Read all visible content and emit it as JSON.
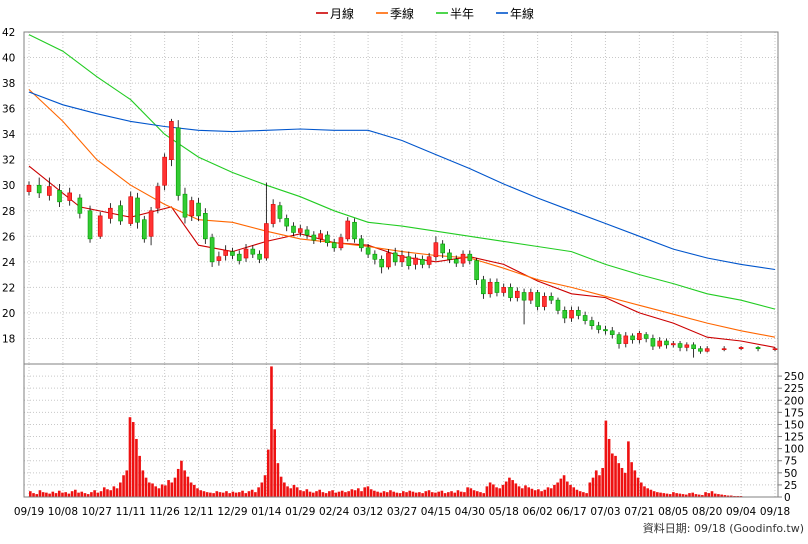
{
  "chart_data": [
    {
      "type": "line",
      "panel": "price",
      "legend": [
        {
          "name": "月線",
          "color": "#cc0000"
        },
        {
          "name": "季線",
          "color": "#ff6600"
        },
        {
          "name": "半年",
          "color": "#22cc22"
        },
        {
          "name": "年線",
          "color": "#0055cc"
        }
      ],
      "ylim": [
        16,
        42
      ],
      "yticks": [
        18,
        20,
        22,
        24,
        26,
        28,
        30,
        32,
        34,
        36,
        38,
        40,
        42
      ],
      "grid": true,
      "legend_position": "top-center",
      "x_ticks": [
        "09/19",
        "10/08",
        "10/27",
        "11/11",
        "11/26",
        "12/11",
        "12/29",
        "01/14",
        "01/29",
        "02/24",
        "03/12",
        "03/27",
        "04/15",
        "04/30",
        "05/18",
        "06/02",
        "06/17",
        "07/03",
        "07/21",
        "08/05",
        "08/20",
        "09/04",
        "09/18"
      ],
      "series": [
        {
          "name": "月線",
          "x": [
            0,
            1.5,
            3,
            4.2,
            5,
            6,
            7,
            8,
            9,
            10,
            11,
            12,
            13,
            14,
            15,
            16,
            17,
            18,
            19,
            20,
            21,
            22
          ],
          "y": [
            31.5,
            28.3,
            27.5,
            28.3,
            25.3,
            24.8,
            25.6,
            26.2,
            25.5,
            25.3,
            24.4,
            24.0,
            24.4,
            23.8,
            22.5,
            21.5,
            21.2,
            20.0,
            19.2,
            18.1,
            17.8,
            17.3
          ]
        },
        {
          "name": "季線",
          "x": [
            0,
            1,
            2,
            3,
            4,
            5,
            6,
            7,
            8,
            9,
            10,
            11,
            12,
            13,
            14,
            15,
            16,
            17,
            18,
            19,
            20,
            21,
            22
          ],
          "y": [
            37.5,
            35.0,
            32.0,
            30.0,
            28.5,
            27.3,
            27.1,
            26.4,
            25.8,
            25.5,
            25.2,
            24.8,
            24.5,
            24.3,
            23.5,
            22.6,
            22.0,
            21.3,
            20.6,
            19.9,
            19.2,
            18.6,
            18.1
          ]
        },
        {
          "name": "半年",
          "x": [
            0,
            1,
            2,
            3,
            4,
            5,
            6,
            7,
            8,
            9,
            10,
            11,
            12,
            13,
            14,
            15,
            16,
            17,
            18,
            19,
            20,
            21,
            22
          ],
          "y": [
            41.8,
            40.5,
            38.5,
            36.7,
            34.0,
            32.2,
            31.0,
            30.0,
            29.1,
            28.0,
            27.1,
            26.8,
            26.4,
            26.0,
            25.6,
            25.2,
            24.8,
            23.8,
            23.0,
            22.3,
            21.5,
            21.0,
            20.3
          ]
        },
        {
          "name": "年線",
          "x": [
            0,
            1,
            2,
            3,
            4,
            5,
            6,
            7,
            8,
            9,
            10,
            11,
            12,
            13,
            14,
            15,
            16,
            17,
            18,
            19,
            20,
            21,
            22
          ],
          "y": [
            37.3,
            36.3,
            35.6,
            35.0,
            34.6,
            34.3,
            34.2,
            34.3,
            34.4,
            34.3,
            34.3,
            33.5,
            32.4,
            31.3,
            30.1,
            29.0,
            28.0,
            27.0,
            26.0,
            25.0,
            24.3,
            23.8,
            23.4
          ]
        }
      ],
      "candles": [
        [
          0.0,
          29.5,
          30.0,
          30.3,
          29.2
        ],
        [
          0.3,
          30.0,
          29.4,
          30.6,
          29.0
        ],
        [
          0.6,
          29.2,
          29.9,
          30.6,
          28.8
        ],
        [
          0.9,
          29.6,
          28.7,
          30.1,
          28.3
        ],
        [
          1.2,
          28.8,
          29.4,
          29.8,
          28.4
        ],
        [
          1.5,
          29.0,
          27.8,
          29.3,
          27.4
        ],
        [
          1.8,
          28.0,
          25.8,
          28.4,
          25.5
        ],
        [
          2.1,
          26.0,
          27.6,
          27.9,
          25.8
        ],
        [
          2.4,
          27.4,
          28.2,
          28.6,
          27.0
        ],
        [
          2.7,
          28.4,
          27.2,
          28.8,
          26.9
        ],
        [
          3.0,
          27.0,
          29.1,
          29.5,
          26.8
        ],
        [
          3.2,
          29.0,
          27.1,
          29.4,
          26.6
        ],
        [
          3.4,
          27.3,
          25.8,
          27.6,
          25.5
        ],
        [
          3.6,
          26.0,
          28.0,
          28.3,
          25.3
        ],
        [
          3.8,
          28.2,
          29.9,
          30.2,
          27.8
        ],
        [
          4.0,
          30.0,
          32.2,
          32.5,
          29.6
        ],
        [
          4.2,
          32.0,
          35.0,
          35.2,
          31.5
        ],
        [
          4.4,
          34.5,
          29.2,
          35.1,
          28.8
        ],
        [
          4.6,
          29.3,
          27.5,
          29.8,
          27.0
        ],
        [
          4.8,
          27.6,
          28.8,
          29.1,
          27.2
        ],
        [
          5.0,
          28.6,
          27.6,
          29.0,
          27.2
        ],
        [
          5.2,
          27.8,
          25.8,
          28.2,
          25.4
        ],
        [
          5.4,
          25.9,
          24.0,
          26.2,
          23.6
        ],
        [
          5.6,
          24.1,
          24.4,
          24.8,
          23.7
        ],
        [
          5.8,
          24.5,
          24.9,
          25.3,
          24.1
        ],
        [
          6.0,
          24.8,
          24.5,
          25.1,
          24.2
        ],
        [
          6.2,
          24.6,
          24.1,
          24.9,
          23.8
        ],
        [
          6.4,
          24.3,
          25.0,
          25.4,
          24.0
        ],
        [
          6.6,
          25.0,
          24.6,
          25.3,
          24.3
        ],
        [
          6.8,
          24.6,
          24.2,
          24.9,
          23.9
        ],
        [
          7.0,
          24.3,
          27.0,
          30.2,
          24.1
        ],
        [
          7.2,
          27.0,
          28.5,
          28.9,
          26.7
        ],
        [
          7.4,
          28.4,
          27.4,
          28.7,
          27.1
        ],
        [
          7.6,
          27.4,
          26.8,
          27.7,
          26.4
        ],
        [
          7.8,
          26.8,
          26.3,
          27.1,
          26.0
        ],
        [
          8.0,
          26.3,
          26.6,
          26.9,
          26.0
        ],
        [
          8.2,
          26.5,
          26.1,
          26.8,
          25.8
        ],
        [
          8.4,
          26.1,
          25.7,
          26.4,
          25.4
        ],
        [
          8.6,
          25.8,
          26.2,
          26.5,
          25.5
        ],
        [
          8.8,
          26.1,
          25.5,
          26.4,
          25.2
        ],
        [
          9.0,
          25.5,
          25.1,
          25.8,
          24.8
        ],
        [
          9.2,
          25.1,
          25.9,
          26.2,
          24.9
        ],
        [
          9.4,
          25.8,
          27.2,
          27.5,
          25.6
        ],
        [
          9.6,
          27.1,
          25.8,
          27.4,
          25.5
        ],
        [
          9.8,
          25.8,
          25.1,
          26.1,
          24.8
        ],
        [
          10.0,
          25.1,
          24.6,
          25.4,
          24.3
        ],
        [
          10.2,
          24.6,
          24.2,
          24.9,
          23.8
        ],
        [
          10.4,
          24.2,
          23.6,
          24.5,
          23.1
        ],
        [
          10.6,
          23.6,
          24.7,
          25.0,
          23.4
        ],
        [
          10.8,
          24.7,
          24.0,
          25.1,
          23.7
        ],
        [
          11.0,
          24.0,
          24.5,
          24.9,
          23.6
        ],
        [
          11.2,
          24.4,
          23.7,
          24.8,
          23.4
        ],
        [
          11.4,
          23.8,
          24.3,
          24.6,
          23.4
        ],
        [
          11.6,
          24.2,
          23.8,
          24.5,
          23.5
        ],
        [
          11.8,
          23.8,
          24.4,
          24.7,
          23.5
        ],
        [
          12.0,
          24.4,
          25.5,
          26.0,
          24.1
        ],
        [
          12.2,
          25.4,
          24.7,
          25.7,
          24.3
        ],
        [
          12.4,
          24.7,
          24.2,
          25.0,
          23.9
        ],
        [
          12.6,
          24.2,
          23.9,
          24.5,
          23.6
        ],
        [
          12.8,
          23.9,
          24.6,
          24.9,
          23.6
        ],
        [
          13.0,
          24.6,
          24.1,
          24.9,
          23.8
        ],
        [
          13.2,
          24.1,
          22.6,
          24.3,
          22.2
        ],
        [
          13.4,
          22.6,
          21.5,
          22.9,
          21.1
        ],
        [
          13.6,
          21.5,
          22.4,
          22.7,
          21.2
        ],
        [
          13.8,
          22.4,
          21.6,
          22.7,
          21.3
        ],
        [
          14.0,
          21.6,
          22.0,
          22.3,
          21.3
        ],
        [
          14.2,
          22.0,
          21.2,
          22.3,
          20.9
        ],
        [
          14.4,
          21.2,
          21.7,
          22.0,
          20.9
        ],
        [
          14.6,
          21.6,
          21.0,
          21.9,
          19.1
        ],
        [
          14.8,
          21.0,
          21.6,
          21.9,
          20.7
        ],
        [
          15.0,
          21.6,
          20.5,
          21.8,
          20.2
        ],
        [
          15.2,
          20.5,
          21.3,
          21.6,
          20.2
        ],
        [
          15.4,
          21.3,
          21.0,
          21.6,
          20.7
        ],
        [
          15.6,
          21.0,
          20.2,
          21.2,
          19.9
        ],
        [
          15.8,
          20.2,
          19.6,
          20.5,
          19.2
        ],
        [
          16.0,
          19.6,
          20.2,
          20.5,
          19.3
        ],
        [
          16.2,
          20.2,
          19.8,
          20.5,
          19.5
        ],
        [
          16.4,
          19.8,
          19.4,
          20.1,
          19.1
        ],
        [
          16.6,
          19.4,
          19.0,
          19.7,
          18.7
        ],
        [
          16.8,
          19.0,
          18.7,
          19.3,
          18.4
        ],
        [
          17.0,
          18.7,
          18.6,
          19.0,
          18.3
        ],
        [
          17.2,
          18.6,
          18.3,
          18.9,
          18.0
        ],
        [
          17.4,
          18.3,
          17.6,
          18.5,
          17.2
        ],
        [
          17.6,
          17.6,
          18.2,
          18.5,
          17.3
        ],
        [
          17.8,
          18.2,
          17.9,
          18.4,
          17.6
        ],
        [
          18.0,
          17.9,
          18.4,
          18.6,
          17.6
        ],
        [
          18.2,
          18.3,
          18.0,
          18.5,
          17.7
        ],
        [
          18.4,
          18.0,
          17.4,
          18.3,
          17.1
        ],
        [
          18.6,
          17.4,
          17.8,
          18.1,
          17.2
        ],
        [
          18.8,
          17.8,
          17.5,
          18.0,
          17.2
        ],
        [
          19.0,
          17.5,
          17.6,
          17.8,
          17.3
        ],
        [
          19.2,
          17.6,
          17.3,
          17.8,
          17.0
        ],
        [
          19.4,
          17.3,
          17.5,
          17.7,
          17.0
        ],
        [
          19.6,
          17.5,
          17.2,
          17.7,
          16.5
        ],
        [
          19.8,
          17.2,
          17.0,
          17.4,
          16.8
        ],
        [
          20.0,
          17.0,
          17.2,
          17.4,
          16.9
        ],
        [
          20.5,
          17.2,
          17.2,
          17.4,
          17.0
        ],
        [
          21.0,
          17.2,
          17.3,
          17.4,
          17.1
        ],
        [
          21.5,
          17.3,
          17.2,
          17.4,
          17.0
        ],
        [
          22.0,
          17.2,
          17.2,
          17.3,
          17.0
        ]
      ]
    },
    {
      "type": "bar",
      "panel": "volume",
      "ylim": [
        0,
        275
      ],
      "yticks": [
        0,
        25,
        50,
        75,
        100,
        125,
        150,
        175,
        200,
        225,
        250
      ],
      "values": [
        12,
        8,
        6,
        14,
        10,
        9,
        7,
        11,
        8,
        13,
        9,
        10,
        7,
        12,
        15,
        9,
        11,
        8,
        6,
        10,
        14,
        9,
        12,
        20,
        16,
        14,
        22,
        18,
        30,
        45,
        55,
        165,
        155,
        120,
        85,
        55,
        40,
        30,
        28,
        22,
        18,
        26,
        24,
        35,
        30,
        40,
        58,
        75,
        55,
        42,
        30,
        25,
        18,
        14,
        12,
        10,
        9,
        8,
        12,
        10,
        9,
        12,
        8,
        11,
        9,
        10,
        13,
        8,
        12,
        15,
        10,
        20,
        30,
        45,
        98,
        270,
        140,
        70,
        42,
        30,
        22,
        18,
        25,
        20,
        14,
        12,
        16,
        11,
        9,
        12,
        15,
        10,
        8,
        12,
        14,
        9,
        11,
        13,
        10,
        12,
        16,
        14,
        18,
        12,
        20,
        22,
        16,
        13,
        11,
        9,
        12,
        10,
        14,
        11,
        9,
        8,
        12,
        10,
        13,
        11,
        9,
        10,
        8,
        12,
        14,
        10,
        9,
        11,
        13,
        8,
        10,
        12,
        9,
        14,
        11,
        10,
        20,
        18,
        14,
        12,
        10,
        8,
        22,
        30,
        26,
        20,
        18,
        25,
        32,
        40,
        35,
        28,
        22,
        18,
        24,
        20,
        17,
        14,
        16,
        12,
        15,
        20,
        18,
        25,
        30,
        38,
        45,
        32,
        25,
        20,
        15,
        12,
        10,
        8,
        30,
        40,
        55,
        45,
        60,
        158,
        120,
        90,
        85,
        70,
        60,
        50,
        115,
        72,
        55,
        40,
        30,
        22,
        18,
        15,
        12,
        10,
        9,
        8,
        7,
        6,
        10,
        8,
        7,
        6,
        5,
        8,
        9,
        6,
        5,
        4,
        10,
        8,
        12,
        7,
        6,
        5,
        4,
        3,
        3,
        2,
        2,
        2,
        1,
        1,
        1,
        1,
        1,
        1,
        1,
        1,
        1,
        1
      ]
    }
  ],
  "footer": {
    "text": "資料日期: 09/18  (Goodinfo.tw)"
  }
}
